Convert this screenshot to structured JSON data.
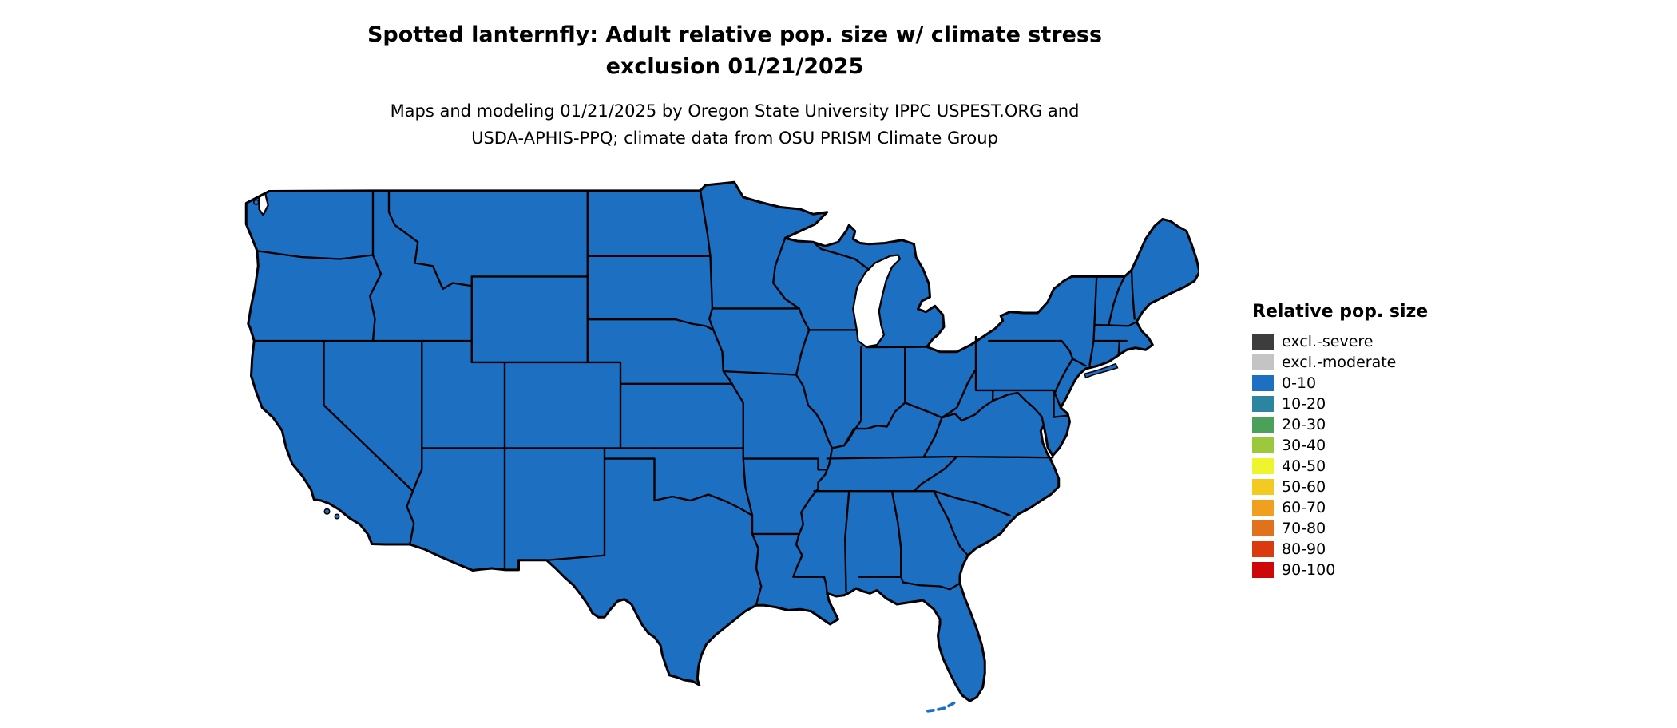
{
  "title": {
    "line1": "Spotted lanternfly: Adult relative pop. size w/ climate stress",
    "line2": "exclusion 01/21/2025"
  },
  "subtitle": {
    "line1": "Maps and modeling 01/21/2025 by Oregon State University IPPC USPEST.ORG and",
    "line2": "USDA-APHIS-PPQ; climate data from OSU PRISM Climate Group"
  },
  "legend": {
    "title": "Relative pop. size",
    "items": [
      {
        "label": "excl.-severe",
        "color": "#3d3d3d"
      },
      {
        "label": "excl.-moderate",
        "color": "#c4c4c4"
      },
      {
        "label": "0-10",
        "color": "#1d6fc2"
      },
      {
        "label": "10-20",
        "color": "#2b84a0"
      },
      {
        "label": "20-30",
        "color": "#4ba05a"
      },
      {
        "label": "30-40",
        "color": "#9cc83c"
      },
      {
        "label": "40-50",
        "color": "#eef52e"
      },
      {
        "label": "50-60",
        "color": "#f3ca22"
      },
      {
        "label": "60-70",
        "color": "#f0a01e"
      },
      {
        "label": "70-80",
        "color": "#e2711c"
      },
      {
        "label": "80-90",
        "color": "#d93a10"
      },
      {
        "label": "90-100",
        "color": "#cd0808"
      }
    ]
  },
  "map": {
    "fill": "#1d6fc2",
    "water": "#ffffff",
    "border": "#000000"
  },
  "chart_data": {
    "type": "choropleth",
    "region": "contiguous United States",
    "legend_title": "Relative pop. size",
    "classes": [
      "excl.-severe",
      "excl.-moderate",
      "0-10",
      "10-20",
      "20-30",
      "30-40",
      "40-50",
      "50-60",
      "60-70",
      "70-80",
      "80-90",
      "90-100"
    ],
    "observed": "all visible states/areas shaded in the 0-10 class (blue)"
  }
}
